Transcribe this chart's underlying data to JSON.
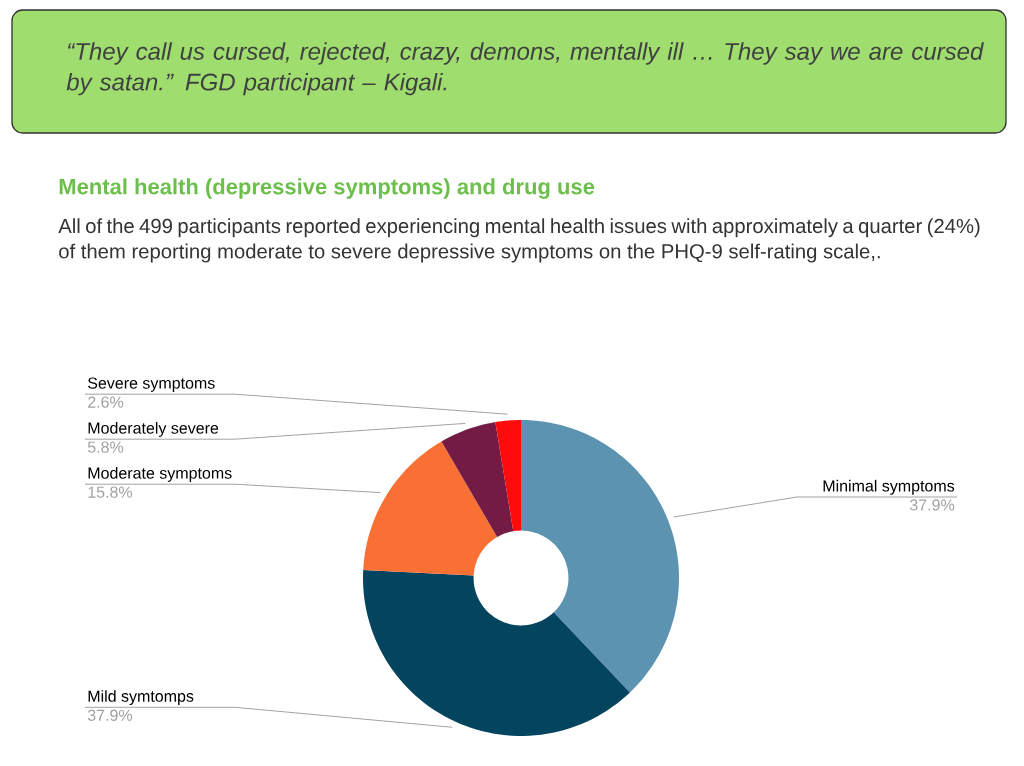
{
  "chart_data": {
    "type": "donut",
    "title": "Mental health (depressive symptoms) and drug use",
    "subtitle": "All of the 499 participants reported experiencing mental health issues with approximately a quarter (24%) of them reporting moderate to severe depressive symptoms on the PHQ-9 self-rating scale,.",
    "annotations": [
      "“They call us cursed, rejected, crazy, demons, mentally ill … They say we are cursed by satan.” FGD participant – Kigali."
    ],
    "categories": [
      "Minimal symptoms",
      "Mild symtomps",
      "Moderate symptoms",
      "Moderately severe",
      "Severe symptoms"
    ],
    "values": [
      37.9,
      37.9,
      15.8,
      5.8,
      2.6
    ],
    "colors": [
      "#5b93b0",
      "#03445f",
      "#f97035",
      "#731a45",
      "#fe0c0c"
    ],
    "value_labels": [
      "37.9%",
      "37.9%",
      "15.8%",
      "5.8%",
      "2.6%"
    ]
  }
}
